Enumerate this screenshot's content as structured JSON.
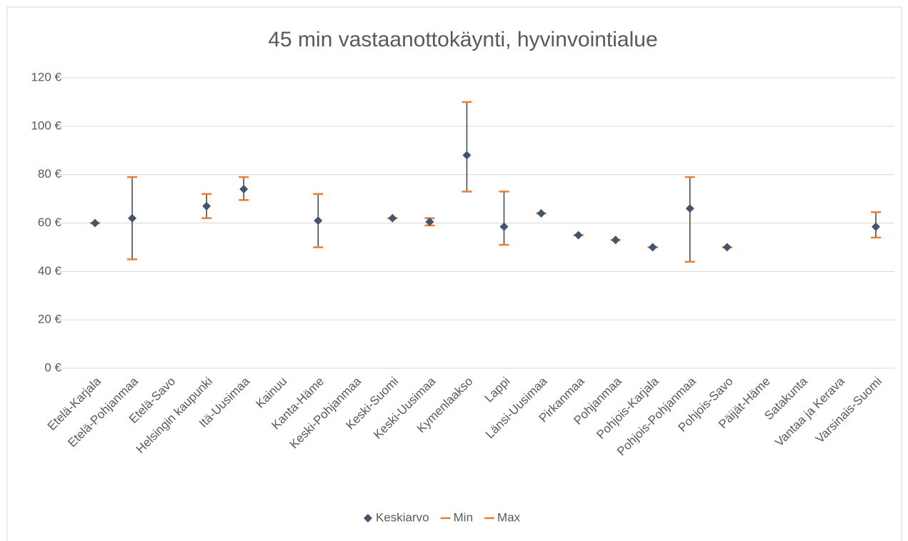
{
  "chart_data": {
    "type": "scatter",
    "title": "45 min vastaanottokäynti, hyvinvointialue",
    "categories": [
      "Etelä-Karjala",
      "Etelä-Pohjanmaa",
      "Etelä-Savo",
      "Helsingin kaupunki",
      "Itä-Uusimaa",
      "Kainuu",
      "Kanta-Häme",
      "Keski-Pohjanmaa",
      "Keski-Suomi",
      "Keski-Uusimaa",
      "Kymenlaakso",
      "Lappi",
      "Länsi-Uusimaa",
      "Pirkanmaa",
      "Pohjanmaa",
      "Pohjois-Karjala",
      "Pohjois-Pohjanmaa",
      "Pohjois-Savo",
      "Päijät-Häme",
      "Satakunta",
      "Vantaa ja Kerava",
      "Varsinais-Suomi"
    ],
    "series": [
      {
        "name": "Keskiarvo",
        "color": "#44546a",
        "marker": "diamond",
        "values": [
          60,
          62,
          null,
          67,
          74,
          null,
          61,
          null,
          62,
          60.5,
          88,
          58.5,
          64,
          55,
          53,
          50,
          66,
          50,
          null,
          null,
          null,
          58.5
        ]
      },
      {
        "name": "Min",
        "color": "#ed7d31",
        "marker": "dash",
        "values": [
          60,
          45,
          null,
          62,
          69.5,
          null,
          50,
          null,
          62,
          59,
          73,
          51,
          64,
          55,
          53,
          50,
          44,
          50,
          null,
          null,
          null,
          54
        ]
      },
      {
        "name": "Max",
        "color": "#ed7d31",
        "marker": "dash",
        "values": [
          60,
          79,
          null,
          72,
          79,
          null,
          72,
          null,
          62,
          62,
          110,
          73,
          64,
          55,
          53,
          50,
          79,
          50,
          null,
          null,
          null,
          64.5
        ]
      }
    ],
    "ylim": [
      0,
      120
    ],
    "yticks": [
      {
        "value": 0,
        "label": "0 €"
      },
      {
        "value": 20,
        "label": "20 €"
      },
      {
        "value": 40,
        "label": "40 €"
      },
      {
        "value": 60,
        "label": "60 €"
      },
      {
        "value": 80,
        "label": "80 €"
      },
      {
        "value": 100,
        "label": "100 €"
      },
      {
        "value": 120,
        "label": "120 €"
      }
    ],
    "grid": true,
    "legend": "bottom",
    "range_line_color": "#404040"
  }
}
